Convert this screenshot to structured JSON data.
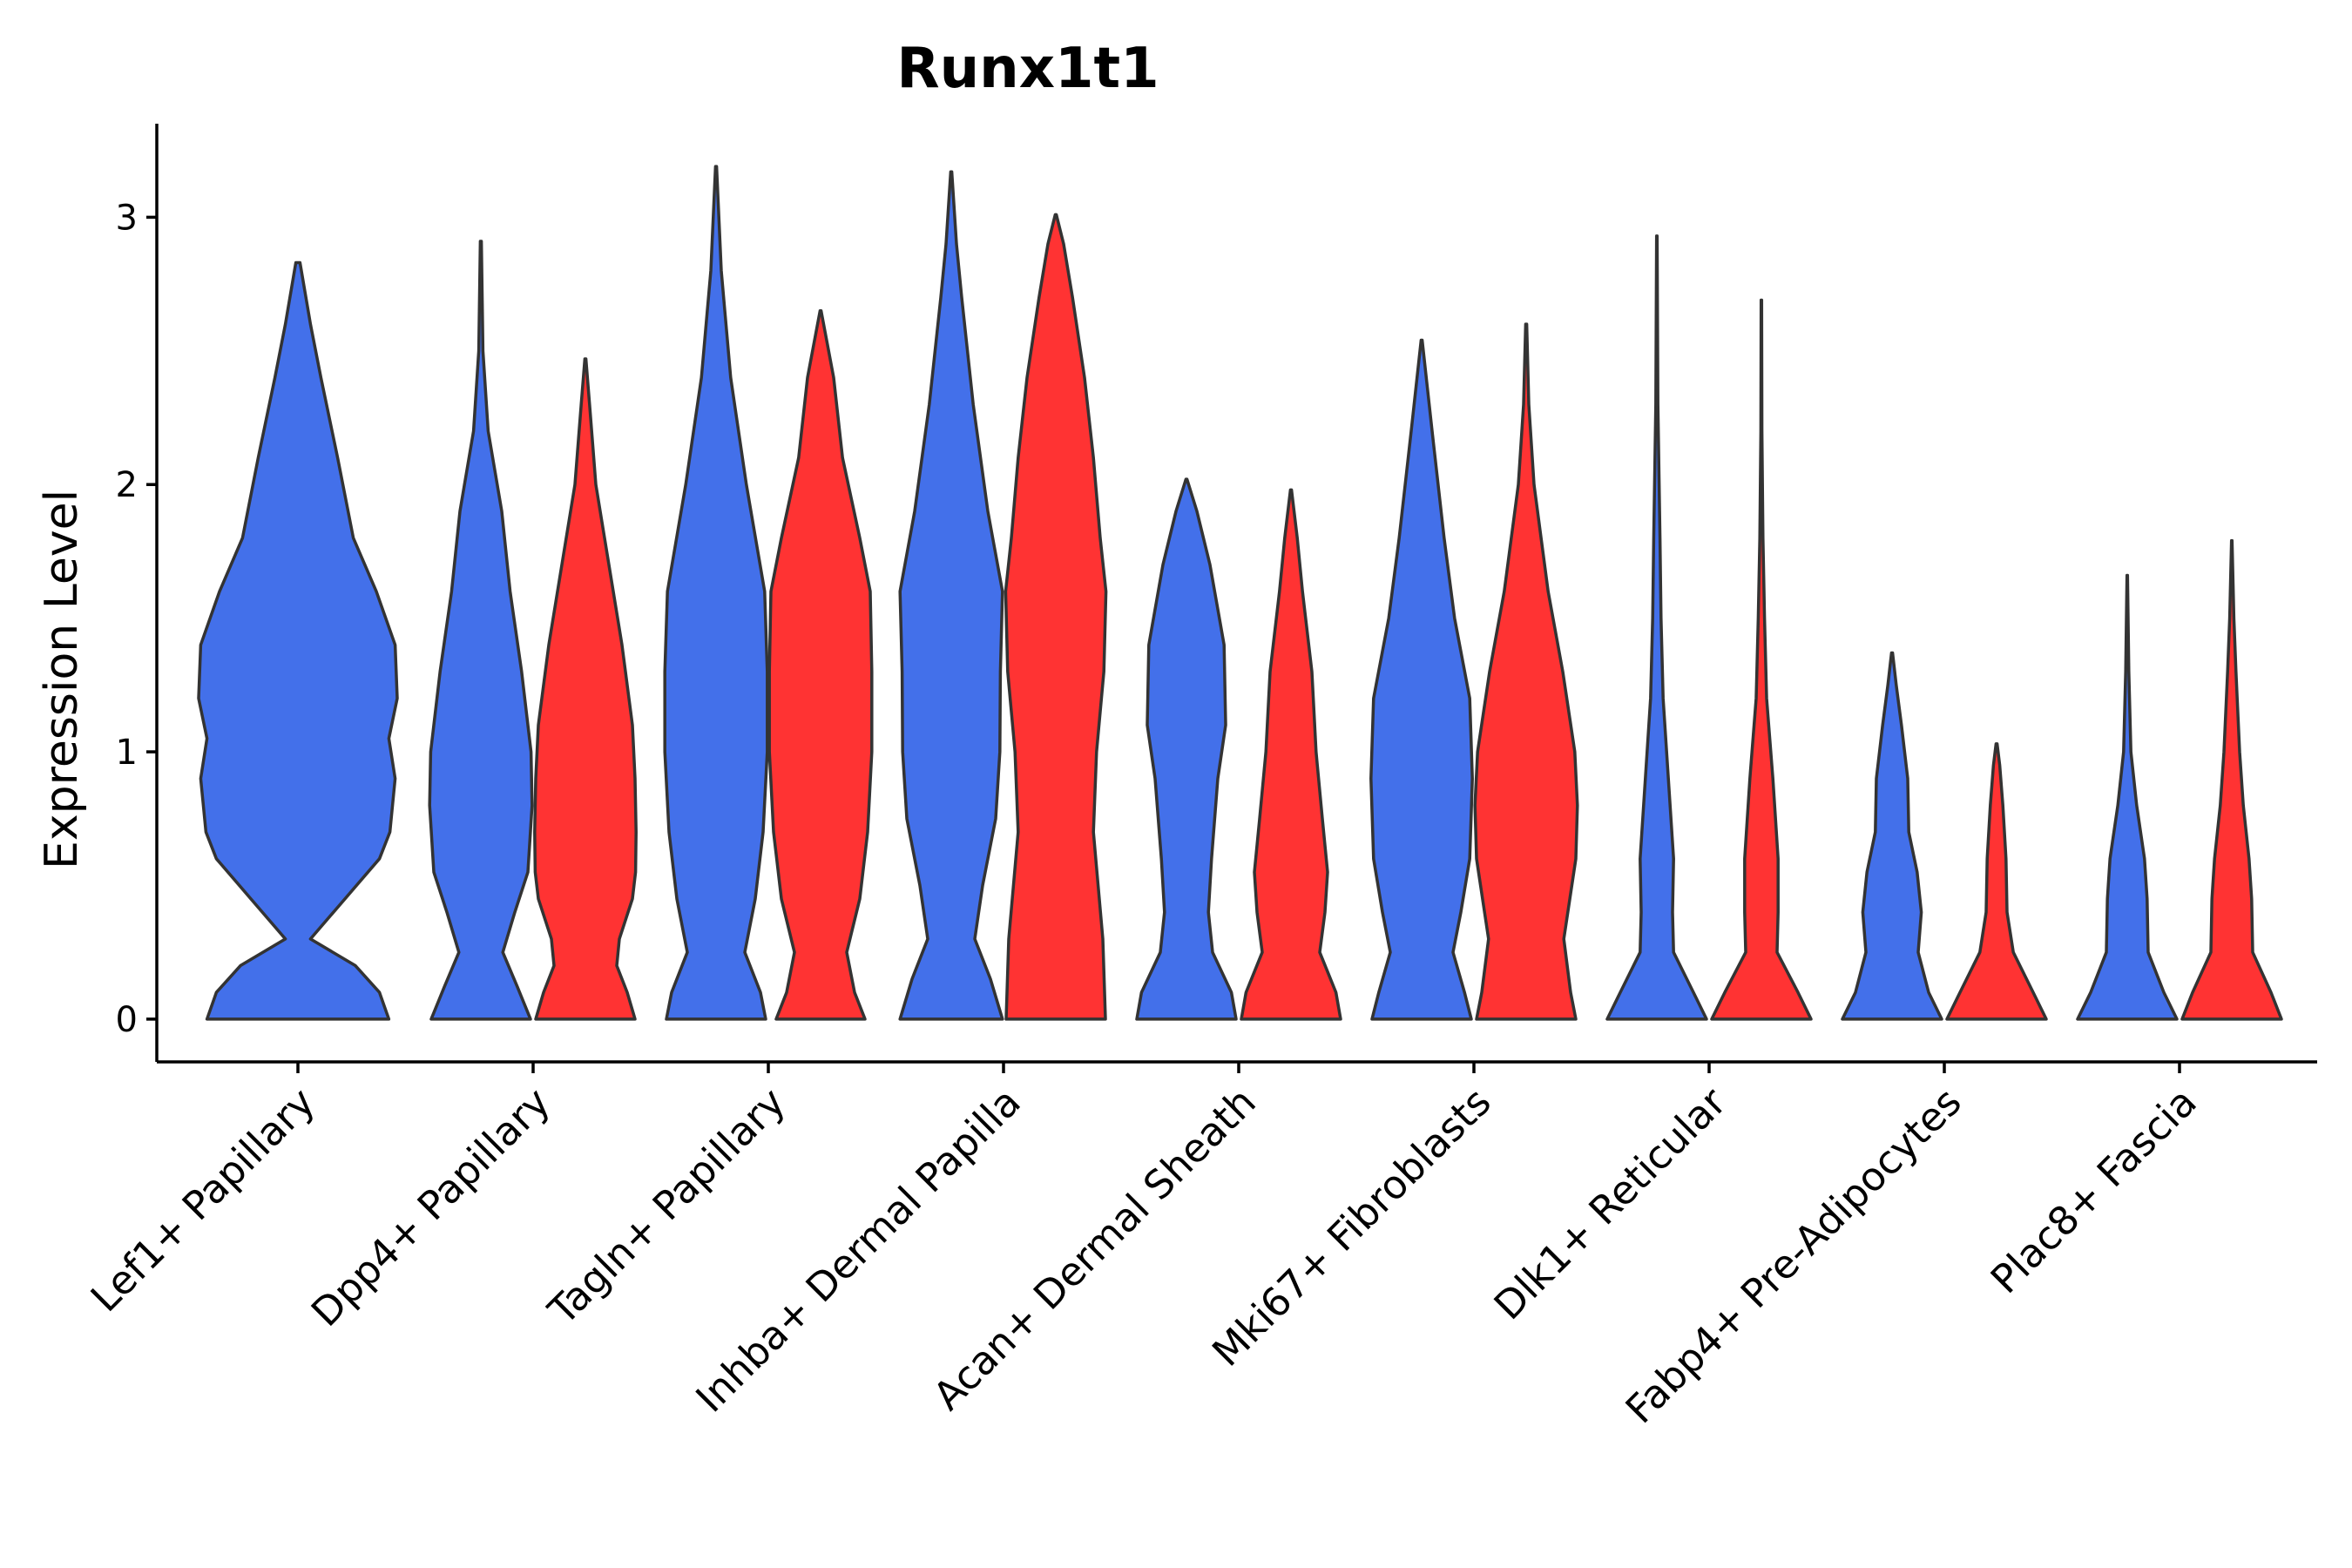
{
  "chart_data": {
    "type": "violin",
    "title": "Runx1t1",
    "xlabel": "",
    "ylabel": "Expression Level",
    "ylim": [
      -0.16,
      3.35
    ],
    "yticks": [
      0,
      1,
      2,
      3
    ],
    "grid": false,
    "legend": "none",
    "colors": {
      "group_a": "#4370EA",
      "group_b": "#FF3333",
      "outline": "#333333"
    },
    "categories": [
      "Lef1+ Papillary",
      "Dpp4+ Papillary",
      "Tagln+ Papillary",
      "Inhba+ Dermal Papilla",
      "Acan+ Dermal Sheath",
      "Mki67+ Fibroblasts",
      "Dlk1+ Reticular",
      "Fabp4+ Pre-Adipocytes",
      "Plac8+ Fascia"
    ],
    "series": [
      {
        "name": "group_a",
        "color": "#4370EA",
        "max": [
          2.83,
          2.91,
          3.19,
          3.17,
          2.02,
          2.54,
          2.93,
          1.37,
          1.66
        ],
        "profiles": [
          [
            [
              0,
              0.87
            ],
            [
              0.1,
              0.78
            ],
            [
              0.2,
              0.55
            ],
            [
              0.3,
              0.12
            ],
            [
              0.45,
              0.45
            ],
            [
              0.6,
              0.78
            ],
            [
              0.7,
              0.88
            ],
            [
              0.9,
              0.93
            ],
            [
              1.05,
              0.87
            ],
            [
              1.2,
              0.95
            ],
            [
              1.4,
              0.93
            ],
            [
              1.6,
              0.75
            ],
            [
              1.8,
              0.53
            ],
            [
              2.1,
              0.38
            ],
            [
              2.4,
              0.22
            ],
            [
              2.6,
              0.12
            ],
            [
              2.83,
              0.02
            ]
          ],
          [
            [
              0,
              0.95
            ],
            [
              0.12,
              0.7
            ],
            [
              0.25,
              0.42
            ],
            [
              0.4,
              0.65
            ],
            [
              0.55,
              0.9
            ],
            [
              0.8,
              0.98
            ],
            [
              1.0,
              0.96
            ],
            [
              1.3,
              0.78
            ],
            [
              1.6,
              0.56
            ],
            [
              1.9,
              0.4
            ],
            [
              2.2,
              0.14
            ],
            [
              2.5,
              0.04
            ],
            [
              2.91,
              0.01
            ]
          ],
          [
            [
              0,
              0.95
            ],
            [
              0.1,
              0.85
            ],
            [
              0.25,
              0.55
            ],
            [
              0.45,
              0.75
            ],
            [
              0.7,
              0.9
            ],
            [
              1.0,
              0.98
            ],
            [
              1.3,
              0.98
            ],
            [
              1.6,
              0.93
            ],
            [
              2.0,
              0.58
            ],
            [
              2.4,
              0.28
            ],
            [
              2.8,
              0.1
            ],
            [
              3.19,
              0.01
            ]
          ],
          [
            [
              0,
              0.98
            ],
            [
              0.15,
              0.75
            ],
            [
              0.3,
              0.45
            ],
            [
              0.5,
              0.6
            ],
            [
              0.75,
              0.85
            ],
            [
              1.0,
              0.93
            ],
            [
              1.3,
              0.94
            ],
            [
              1.6,
              0.98
            ],
            [
              1.9,
              0.7
            ],
            [
              2.3,
              0.42
            ],
            [
              2.7,
              0.2
            ],
            [
              2.9,
              0.1
            ],
            [
              3.17,
              0.01
            ]
          ],
          [
            [
              0,
              0.95
            ],
            [
              0.1,
              0.86
            ],
            [
              0.25,
              0.5
            ],
            [
              0.4,
              0.42
            ],
            [
              0.6,
              0.48
            ],
            [
              0.9,
              0.6
            ],
            [
              1.1,
              0.75
            ],
            [
              1.4,
              0.72
            ],
            [
              1.7,
              0.45
            ],
            [
              1.9,
              0.2
            ],
            [
              2.02,
              0.01
            ]
          ],
          [
            [
              0,
              0.95
            ],
            [
              0.1,
              0.82
            ],
            [
              0.25,
              0.6
            ],
            [
              0.4,
              0.75
            ],
            [
              0.6,
              0.92
            ],
            [
              0.9,
              0.97
            ],
            [
              1.2,
              0.92
            ],
            [
              1.5,
              0.63
            ],
            [
              1.8,
              0.43
            ],
            [
              2.2,
              0.2
            ],
            [
              2.54,
              0.01
            ]
          ],
          [
            [
              0,
              0.95
            ],
            [
              0.1,
              0.7
            ],
            [
              0.25,
              0.32
            ],
            [
              0.4,
              0.3
            ],
            [
              0.6,
              0.32
            ],
            [
              0.9,
              0.22
            ],
            [
              1.2,
              0.12
            ],
            [
              1.5,
              0.08
            ],
            [
              1.8,
              0.06
            ],
            [
              2.3,
              0.02
            ],
            [
              2.93,
              0.005
            ]
          ],
          [
            [
              0,
              0.95
            ],
            [
              0.1,
              0.7
            ],
            [
              0.25,
              0.5
            ],
            [
              0.4,
              0.56
            ],
            [
              0.55,
              0.48
            ],
            [
              0.7,
              0.32
            ],
            [
              0.9,
              0.3
            ],
            [
              1.1,
              0.18
            ],
            [
              1.25,
              0.08
            ],
            [
              1.37,
              0.01
            ]
          ],
          [
            [
              0,
              0.95
            ],
            [
              0.1,
              0.7
            ],
            [
              0.25,
              0.4
            ],
            [
              0.45,
              0.38
            ],
            [
              0.6,
              0.33
            ],
            [
              0.8,
              0.18
            ],
            [
              1.0,
              0.07
            ],
            [
              1.3,
              0.03
            ],
            [
              1.66,
              0.005
            ]
          ]
        ]
      },
      {
        "name": "group_b",
        "color": "#FF3333",
        "max": [
          null,
          2.47,
          2.65,
          3.01,
          1.98,
          2.6,
          2.69,
          1.03,
          1.79
        ],
        "profiles": [
          null,
          [
            [
              0,
              0.95
            ],
            [
              0.1,
              0.8
            ],
            [
              0.2,
              0.6
            ],
            [
              0.3,
              0.65
            ],
            [
              0.45,
              0.9
            ],
            [
              0.55,
              0.96
            ],
            [
              0.7,
              0.97
            ],
            [
              0.9,
              0.95
            ],
            [
              1.1,
              0.9
            ],
            [
              1.4,
              0.7
            ],
            [
              1.7,
              0.45
            ],
            [
              2.0,
              0.2
            ],
            [
              2.3,
              0.08
            ],
            [
              2.47,
              0.01
            ]
          ],
          [
            [
              0,
              0.85
            ],
            [
              0.1,
              0.65
            ],
            [
              0.25,
              0.5
            ],
            [
              0.45,
              0.75
            ],
            [
              0.7,
              0.9
            ],
            [
              1.0,
              0.98
            ],
            [
              1.3,
              0.98
            ],
            [
              1.6,
              0.95
            ],
            [
              1.8,
              0.75
            ],
            [
              2.1,
              0.42
            ],
            [
              2.4,
              0.25
            ],
            [
              2.65,
              0.01
            ]
          ],
          [
            [
              0,
              0.95
            ],
            [
              0.3,
              0.9
            ],
            [
              0.7,
              0.72
            ],
            [
              1.0,
              0.78
            ],
            [
              1.3,
              0.92
            ],
            [
              1.6,
              0.96
            ],
            [
              1.8,
              0.85
            ],
            [
              2.1,
              0.72
            ],
            [
              2.4,
              0.55
            ],
            [
              2.7,
              0.32
            ],
            [
              2.9,
              0.15
            ],
            [
              3.01,
              0.01
            ]
          ],
          [
            [
              0,
              0.95
            ],
            [
              0.1,
              0.86
            ],
            [
              0.25,
              0.55
            ],
            [
              0.4,
              0.65
            ],
            [
              0.55,
              0.7
            ],
            [
              0.75,
              0.6
            ],
            [
              1.0,
              0.48
            ],
            [
              1.3,
              0.4
            ],
            [
              1.6,
              0.22
            ],
            [
              1.8,
              0.12
            ],
            [
              1.98,
              0.01
            ]
          ],
          [
            [
              0,
              0.95
            ],
            [
              0.1,
              0.85
            ],
            [
              0.3,
              0.72
            ],
            [
              0.6,
              0.95
            ],
            [
              0.8,
              0.98
            ],
            [
              1.0,
              0.93
            ],
            [
              1.3,
              0.7
            ],
            [
              1.6,
              0.42
            ],
            [
              2.0,
              0.15
            ],
            [
              2.3,
              0.05
            ],
            [
              2.6,
              0.01
            ]
          ],
          [
            [
              0,
              0.95
            ],
            [
              0.1,
              0.7
            ],
            [
              0.25,
              0.3
            ],
            [
              0.4,
              0.32
            ],
            [
              0.6,
              0.32
            ],
            [
              0.9,
              0.22
            ],
            [
              1.2,
              0.1
            ],
            [
              1.5,
              0.06
            ],
            [
              1.8,
              0.03
            ],
            [
              2.2,
              0.01
            ],
            [
              2.69,
              0.005
            ]
          ],
          [
            [
              0,
              0.95
            ],
            [
              0.1,
              0.7
            ],
            [
              0.25,
              0.32
            ],
            [
              0.4,
              0.2
            ],
            [
              0.6,
              0.18
            ],
            [
              0.8,
              0.12
            ],
            [
              0.95,
              0.06
            ],
            [
              1.03,
              0.01
            ]
          ],
          [
            [
              0,
              0.95
            ],
            [
              0.1,
              0.75
            ],
            [
              0.25,
              0.4
            ],
            [
              0.45,
              0.38
            ],
            [
              0.6,
              0.33
            ],
            [
              0.8,
              0.22
            ],
            [
              1.0,
              0.15
            ],
            [
              1.3,
              0.08
            ],
            [
              1.5,
              0.04
            ],
            [
              1.79,
              0.005
            ]
          ]
        ]
      }
    ]
  }
}
